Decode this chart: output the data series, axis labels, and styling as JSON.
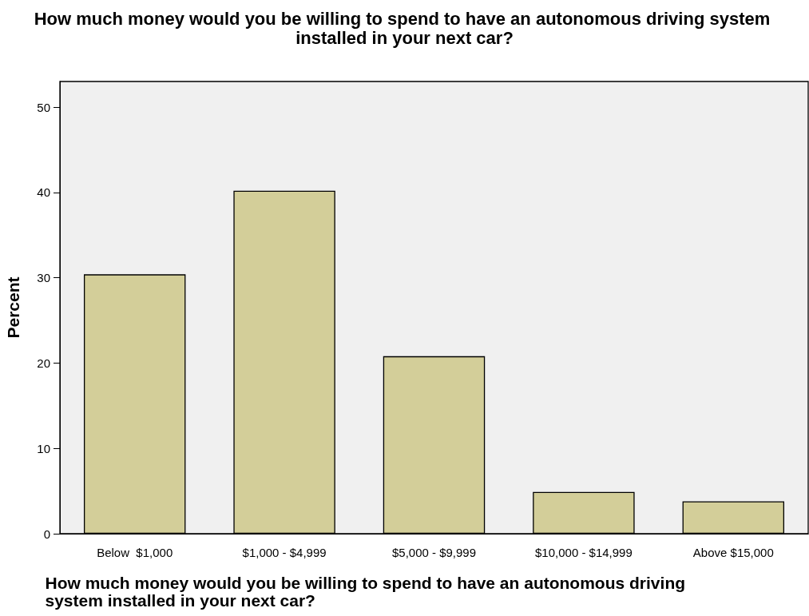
{
  "chart_data": {
    "type": "bar",
    "title": "How much money would you be willing to spend to have an autonomous driving system installed in your next car?",
    "xlabel": "How much money would you be willing to spend to have an autonomous driving system installed in your next car?",
    "ylabel": "Percent",
    "categories": [
      "Below  $1,000",
      "$1,000 - $4,999",
      "$5,000 - $9,999",
      "$10,000 - $14,999",
      "Above $15,000"
    ],
    "values": [
      30.4,
      40.2,
      20.8,
      4.9,
      3.8
    ],
    "color": "#d3ce99",
    "ylim": [
      0,
      53
    ],
    "yticks": [
      0,
      10,
      20,
      30,
      40,
      50
    ],
    "grid": false
  }
}
